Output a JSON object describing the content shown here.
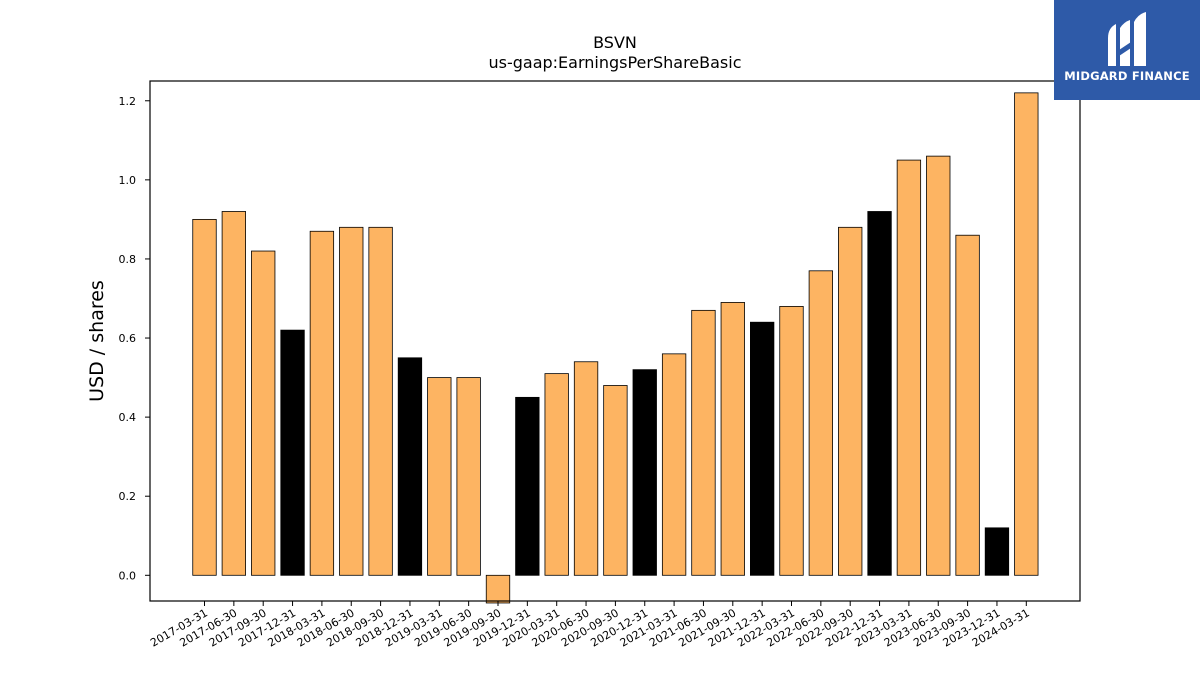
{
  "chart_data": {
    "type": "bar",
    "title": "BSVN",
    "subtitle": "us-gaap:EarningsPerShareBasic",
    "xlabel": "",
    "ylabel": "USD / shares",
    "ylim": [
      -0.065,
      1.25
    ],
    "yticks": [
      "0.0",
      "0.2",
      "0.4",
      "0.6",
      "0.8",
      "1.0",
      "1.2"
    ],
    "grid": false,
    "categories": [
      "2017-03-31",
      "2017-06-30",
      "2017-09-30",
      "2017-12-31",
      "2018-03-31",
      "2018-06-30",
      "2018-09-30",
      "2018-12-31",
      "2019-03-31",
      "2019-06-30",
      "2019-09-30",
      "2019-12-31",
      "2020-03-31",
      "2020-06-30",
      "2020-09-30",
      "2020-12-31",
      "2021-03-31",
      "2021-06-30",
      "2021-09-30",
      "2021-12-31",
      "2022-03-31",
      "2022-06-30",
      "2022-09-30",
      "2022-12-31",
      "2023-03-31",
      "2023-06-30",
      "2023-09-30",
      "2023-12-31",
      "2024-03-31"
    ],
    "values": [
      0.9,
      0.92,
      0.82,
      0.62,
      0.87,
      0.88,
      0.88,
      0.55,
      0.5,
      0.5,
      -0.07,
      0.45,
      0.51,
      0.54,
      0.48,
      0.52,
      0.56,
      0.67,
      0.69,
      0.64,
      0.68,
      0.77,
      0.88,
      0.92,
      1.05,
      1.06,
      0.86,
      0.12,
      1.22
    ],
    "bar_colors": [
      "#fdb462",
      "#fdb462",
      "#fdb462",
      "#000000",
      "#fdb462",
      "#fdb462",
      "#fdb462",
      "#000000",
      "#fdb462",
      "#fdb462",
      "#fdb462",
      "#000000",
      "#fdb462",
      "#fdb462",
      "#fdb462",
      "#000000",
      "#fdb462",
      "#fdb462",
      "#fdb462",
      "#000000",
      "#fdb462",
      "#fdb462",
      "#fdb462",
      "#000000",
      "#fdb462",
      "#fdb462",
      "#fdb462",
      "#000000",
      "#fdb462"
    ],
    "colors": {
      "quarter": "#fdb462",
      "year_end": "#000000"
    }
  },
  "logo": {
    "text": "MIDGARD FINANCE",
    "background": "#2e5aa8"
  }
}
